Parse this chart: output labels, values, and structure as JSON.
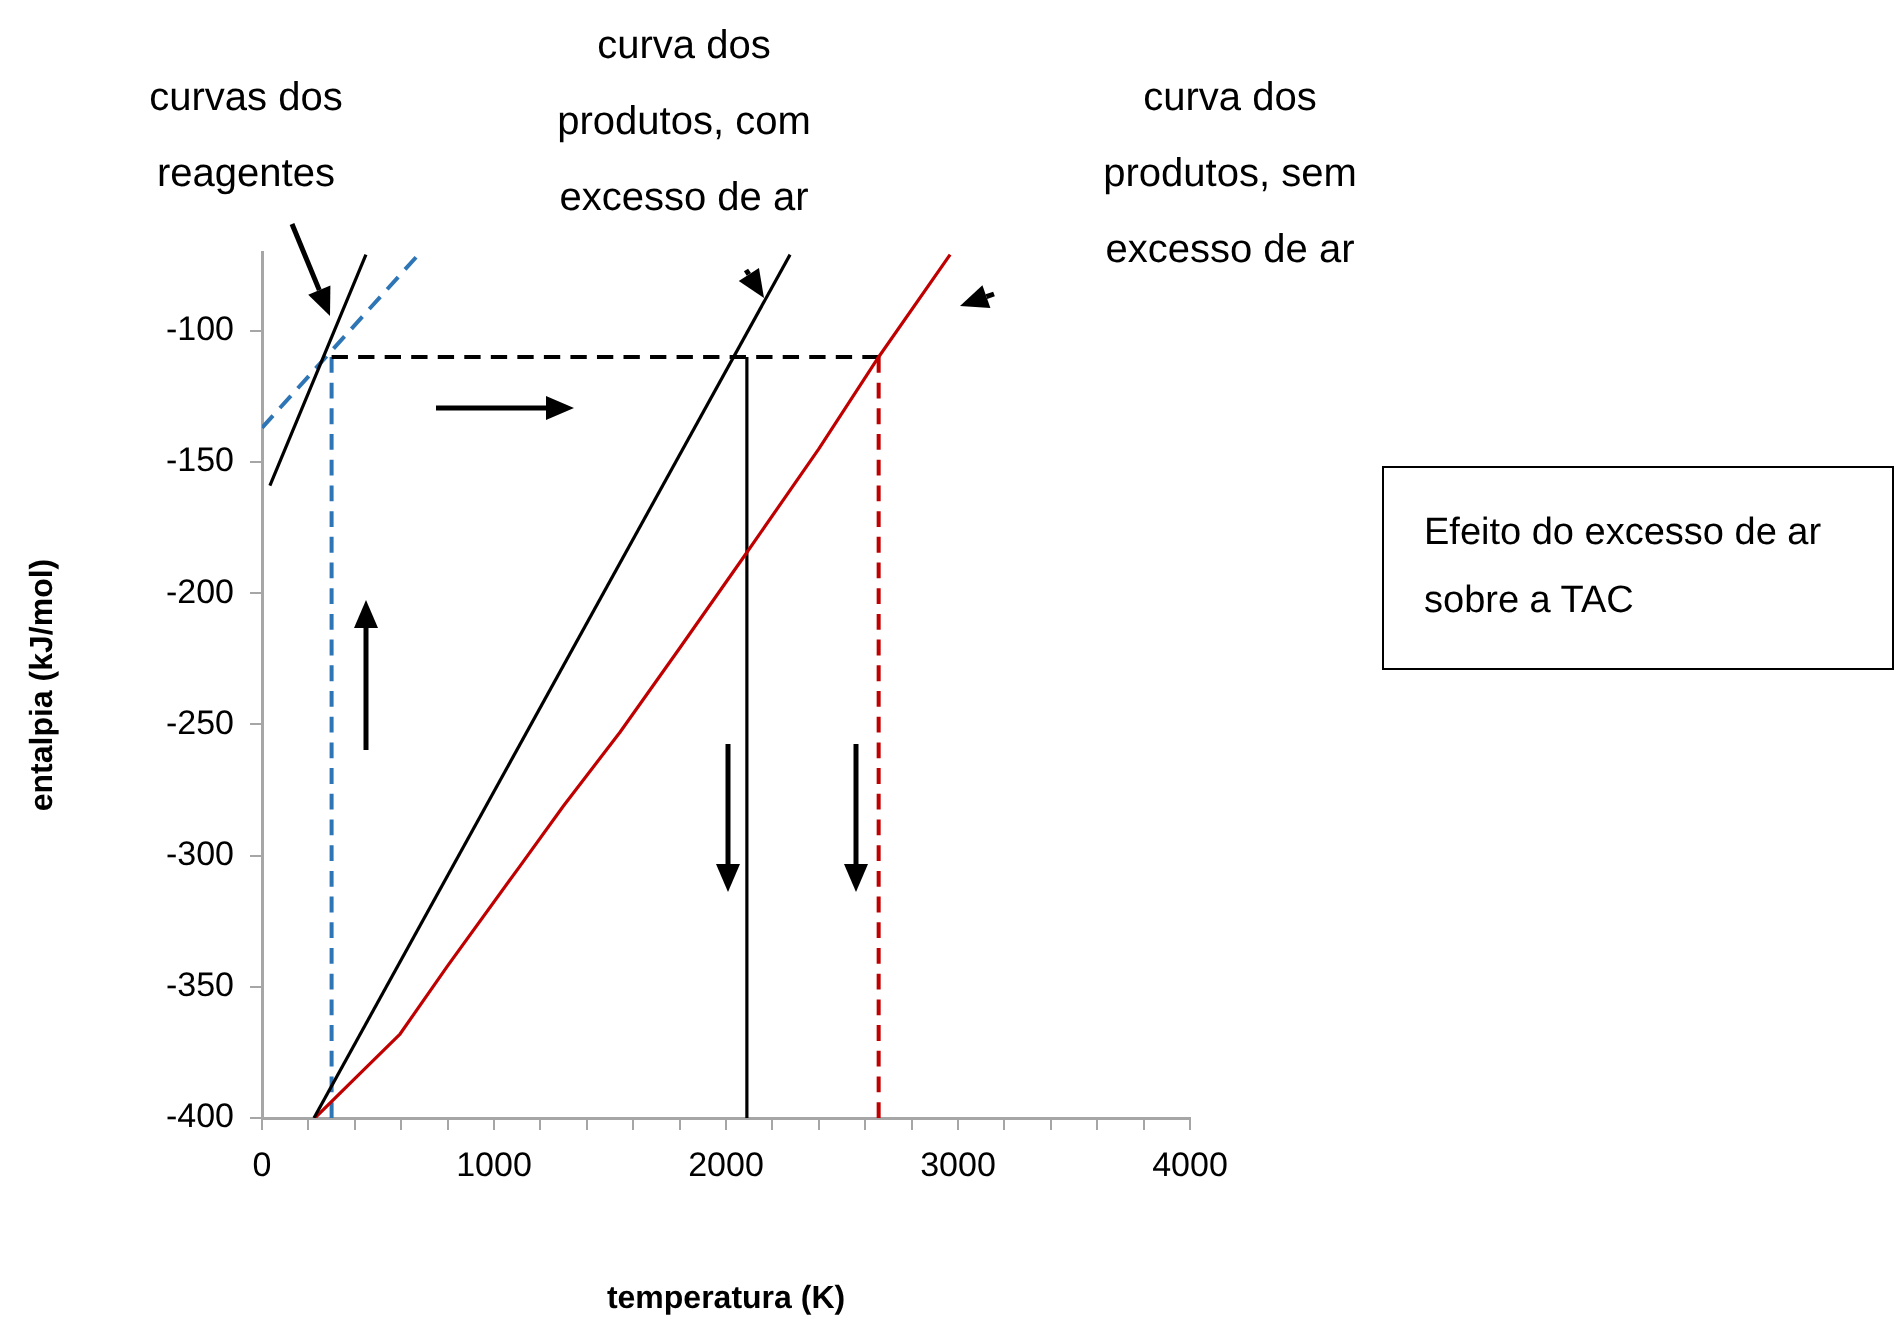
{
  "chart_data": {
    "type": "line",
    "xlabel": "temperatura (K)",
    "ylabel": "entalpia (kJ/mol)",
    "xlim": [
      0,
      4000
    ],
    "xticks": [
      0,
      {
        "value": 200,
        "label": null
      },
      {
        "value": 400,
        "label": null
      },
      {
        "value": 600,
        "label": null
      },
      {
        "value": 800,
        "label": null
      },
      1000,
      {
        "value": 1200,
        "label": null
      },
      {
        "value": 1400,
        "label": null
      },
      {
        "value": 1600,
        "label": null
      },
      {
        "value": 1800,
        "label": null
      },
      2000,
      {
        "value": 2200,
        "label": null
      },
      {
        "value": 2400,
        "label": null
      },
      {
        "value": 2600,
        "label": null
      },
      {
        "value": 2800,
        "label": null
      },
      3000,
      {
        "value": 3200,
        "label": null
      },
      {
        "value": 3400,
        "label": null
      },
      {
        "value": 3600,
        "label": null
      },
      {
        "value": 3800,
        "label": null
      },
      4000
    ],
    "ylim": [
      -400,
      -70
    ],
    "yticks": [
      -400,
      -350,
      -300,
      -250,
      -200,
      -150,
      -100
    ],
    "grid": false,
    "legend": false,
    "marker": "none",
    "series": [
      {
        "color": "#000000",
        "x": [
          34,
          448
        ],
        "values": [
          -159,
          -71
        ]
      },
      {
        "color": "#2e75b6",
        "line_style": "dashed",
        "x": [
          0,
          664
        ],
        "values": [
          -137,
          -72
        ]
      },
      {
        "color": "#000000",
        "x": [
          224,
          2276
        ],
        "values": [
          -400,
          -71
        ]
      },
      {
        "color": "#c00000",
        "x": [
          228,
          400,
          595,
          800,
          1112,
          1300,
          1543,
          1800,
          2086,
          2400,
          2658,
          2966
        ],
        "values": [
          -400,
          -385,
          -368,
          -342,
          -304,
          -281,
          -253,
          -221,
          -185,
          -145,
          -110,
          -71
        ]
      },
      {
        "color": "#000000",
        "line_style": "dashed",
        "x": [
          300,
          2658
        ],
        "values": [
          -110,
          -110
        ]
      },
      {
        "color": "#2e75b6",
        "line_style": "dashed",
        "x": [
          300,
          300
        ],
        "values": [
          -400,
          -110
        ]
      },
      {
        "color": "#000000",
        "x": [
          2090,
          2090
        ],
        "values": [
          -400,
          -110
        ]
      },
      {
        "color": "#c00000",
        "line_style": "dashed",
        "x": [
          2658,
          2658
        ],
        "values": [
          -400,
          -110
        ]
      }
    ],
    "annotations": [
      "curvas dos reagentes",
      "curva dos produtos, com excesso de ar",
      "curva dos produtos, sem excesso de ar",
      "Efeito do excesso de ar sobre a TAC"
    ]
  }
}
